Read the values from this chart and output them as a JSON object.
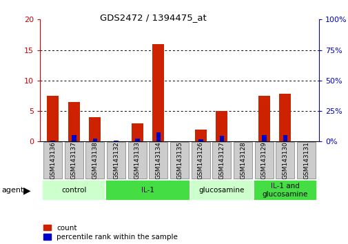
{
  "title": "GDS2472 / 1394475_at",
  "samples": [
    "GSM143136",
    "GSM143137",
    "GSM143138",
    "GSM143132",
    "GSM143133",
    "GSM143134",
    "GSM143135",
    "GSM143126",
    "GSM143127",
    "GSM143128",
    "GSM143129",
    "GSM143130",
    "GSM143131"
  ],
  "count": [
    7.5,
    6.5,
    4.0,
    0.0,
    3.0,
    16.0,
    0.0,
    2.0,
    5.0,
    0.0,
    7.5,
    7.8,
    0.0
  ],
  "percentile": [
    0.5,
    5.0,
    2.5,
    1.0,
    2.5,
    7.5,
    0.0,
    2.0,
    4.5,
    0.0,
    5.0,
    5.0,
    0.0
  ],
  "groups": [
    {
      "label": "control",
      "start": 0,
      "end": 3,
      "color": "#ccffcc"
    },
    {
      "label": "IL-1",
      "start": 3,
      "end": 7,
      "color": "#44dd44"
    },
    {
      "label": "glucosamine",
      "start": 7,
      "end": 10,
      "color": "#ccffcc"
    },
    {
      "label": "IL-1 and\nglucosamine",
      "start": 10,
      "end": 13,
      "color": "#44dd44"
    }
  ],
  "left_ylim": [
    0,
    20
  ],
  "right_ylim": [
    0,
    100
  ],
  "left_yticks": [
    0,
    5,
    10,
    15,
    20
  ],
  "right_yticks": [
    0,
    25,
    50,
    75,
    100
  ],
  "left_color": "#cc0000",
  "right_color": "#0000cc",
  "bar_color_red": "#cc2200",
  "bar_color_blue": "#0000cc",
  "bg_color": "#ffffff",
  "tickbox_color": "#cccccc"
}
